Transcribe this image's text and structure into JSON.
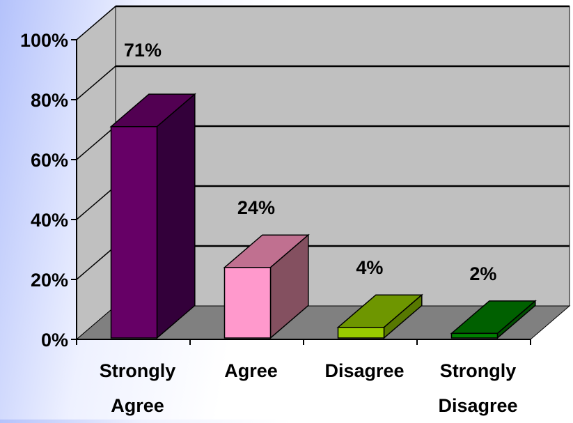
{
  "chart_data": {
    "type": "bar",
    "style": "3d-column",
    "categories": [
      [
        "Strongly",
        "Agree"
      ],
      [
        "Agree"
      ],
      [
        "Disagree"
      ],
      [
        "Strongly",
        "Disagree"
      ]
    ],
    "values": [
      71,
      24,
      4,
      2
    ],
    "data_labels": [
      "71%",
      "24%",
      "4%",
      "2%"
    ],
    "ylim": [
      0,
      100
    ],
    "yticks": [
      "0%",
      "20%",
      "40%",
      "60%",
      "80%",
      "100%"
    ],
    "title": "",
    "xlabel": "",
    "ylabel": "",
    "grid": true,
    "legend": "none",
    "colors": [
      {
        "front": "#660066",
        "top": "#520052",
        "side": "#33003a"
      },
      {
        "front": "#ff99cc",
        "top": "#c07090",
        "side": "#845060"
      },
      {
        "front": "#99cc00",
        "top": "#6e9600",
        "side": "#577800"
      },
      {
        "front": "#008000",
        "top": "#006000",
        "side": "#004d00"
      }
    ],
    "wall_color": "#c0c0c0",
    "floor_color": "#808080"
  }
}
